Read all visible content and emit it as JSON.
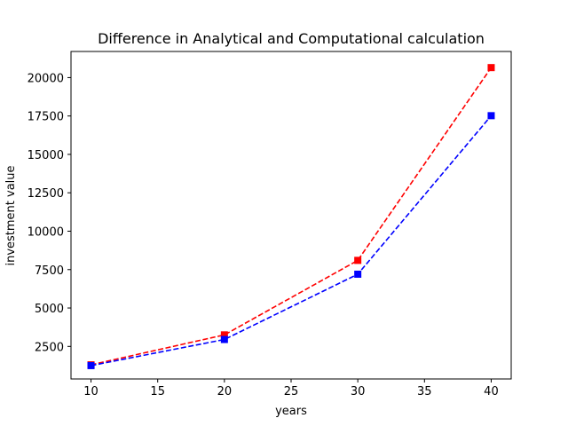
{
  "chart_data": {
    "type": "line",
    "title": "Difference in Analytical and Computational calculation",
    "xlabel": "years",
    "ylabel": "investment value",
    "x": [
      10,
      20,
      30,
      40
    ],
    "xlim": [
      8.5,
      41.5
    ],
    "ylim": [
      380,
      21700
    ],
    "xticks": [
      10,
      15,
      20,
      25,
      30,
      35,
      40
    ],
    "yticks": [
      2500,
      5000,
      7500,
      10000,
      12500,
      15000,
      17500,
      20000
    ],
    "grid": false,
    "legend": "none",
    "series": [
      {
        "color": "#ff0000",
        "linestyle": "dashed",
        "marker": "square",
        "values": [
          1300,
          3250,
          8100,
          20650
        ]
      },
      {
        "color": "#0000ff",
        "linestyle": "dashed",
        "marker": "square",
        "values": [
          1250,
          2950,
          7200,
          17520
        ]
      }
    ]
  }
}
